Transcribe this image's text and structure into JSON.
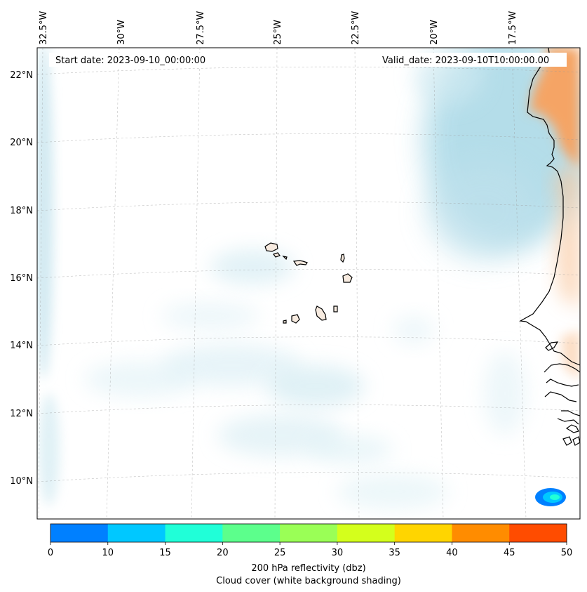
{
  "map": {
    "start_label": "Start date: 2023-09-10_00:00:00",
    "valid_label": "Valid_date: 2023-09-10T10:00:00.00",
    "lon_labels": [
      "32.5°W",
      "30°W",
      "27.5°W",
      "25°W",
      "22.5°W",
      "20°W",
      "17.5°W"
    ],
    "lat_labels": [
      "22°N",
      "20°N",
      "18°N",
      "16°N",
      "14°N",
      "12°N",
      "10°N"
    ]
  },
  "colorbar": {
    "ticks": [
      "0",
      "10",
      "15",
      "20",
      "25",
      "30",
      "35",
      "40",
      "45",
      "50"
    ],
    "colors": [
      "#0080ff",
      "#00c8ff",
      "#20ffd8",
      "#5cff8c",
      "#9aff56",
      "#d4ff1c",
      "#ffd500",
      "#ff8c00",
      "#ff4c00"
    ],
    "label_line1": "200 hPa reflectivity (dbz)",
    "label_line2": "Cloud cover (white background shading)"
  },
  "colors": {
    "cloud": "#a8d8e6",
    "land_warm": "#f5a465",
    "coast": "#000000"
  }
}
